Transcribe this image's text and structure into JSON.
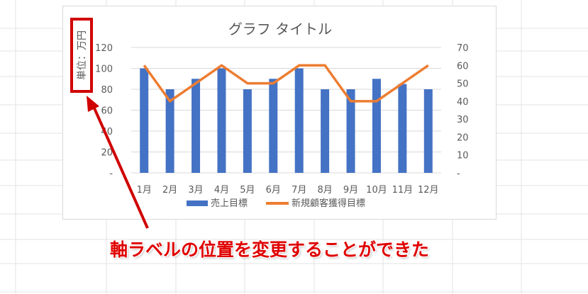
{
  "caption": "軸ラベルの位置を変更することができた",
  "colors": {
    "bar": "#4472c4",
    "line": "#ed7d31",
    "highlight": "#d00000",
    "axis_text": "#595959",
    "gridline": "#d9d9d9"
  },
  "chart_data": {
    "type": "bar",
    "title": "グラフ タイトル",
    "ylabel": "単位：万円",
    "categories": [
      "1月",
      "2月",
      "3月",
      "4月",
      "5月",
      "6月",
      "7月",
      "8月",
      "9月",
      "10月",
      "11月",
      "12月"
    ],
    "series": [
      {
        "name": "売上目標",
        "type": "bar",
        "axis": "left",
        "values": [
          100,
          80,
          90,
          100,
          80,
          90,
          100,
          80,
          80,
          90,
          85,
          80
        ]
      },
      {
        "name": "新規顧客獲得目標",
        "type": "line",
        "axis": "right",
        "values": [
          60,
          40,
          50,
          60,
          50,
          50,
          60,
          60,
          40,
          40,
          50,
          60
        ]
      }
    ],
    "left_axis": {
      "ylim": [
        0,
        120
      ],
      "ticks": [
        "-",
        "20",
        "40",
        "60",
        "80",
        "100",
        "120"
      ]
    },
    "right_axis": {
      "ylim": [
        0,
        70
      ],
      "ticks": [
        "-",
        "10",
        "20",
        "30",
        "40",
        "50",
        "60",
        "70"
      ]
    },
    "grid": true,
    "legend": "bottom"
  }
}
